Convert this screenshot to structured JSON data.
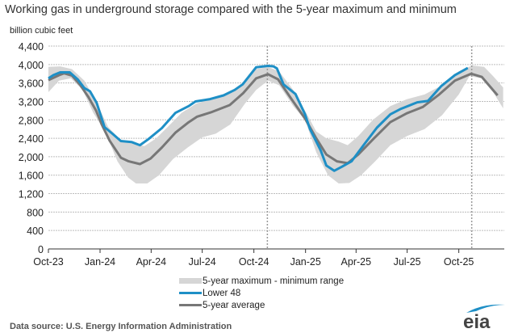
{
  "chart_data": {
    "type": "line",
    "title": "Working gas in underground  storage compared with the 5-year maximum and minimum",
    "ylabel": "billion cubic feet",
    "xlabel": "",
    "ylim": [
      0,
      4400
    ],
    "yticks": [
      0,
      400,
      800,
      1200,
      1600,
      2000,
      2400,
      2800,
      3200,
      3600,
      4000,
      4400
    ],
    "ytick_labels": [
      "0",
      "400",
      "800",
      "1,200",
      "1,600",
      "2,000",
      "2,400",
      "2,800",
      "3,200",
      "3,600",
      "4,000",
      "4,400"
    ],
    "xlim": [
      "2023-10-01",
      "2025-12-21"
    ],
    "xticks": [
      {
        "date": "2023-10-01",
        "label": "Oct-23"
      },
      {
        "date": "2024-01-01",
        "label": "Jan-24"
      },
      {
        "date": "2024-04-01",
        "label": "Apr-24"
      },
      {
        "date": "2024-07-01",
        "label": "Jul-24"
      },
      {
        "date": "2024-10-01",
        "label": "Oct-24"
      },
      {
        "date": "2025-01-01",
        "label": "Jan-25"
      },
      {
        "date": "2025-04-01",
        "label": "Apr-25"
      },
      {
        "date": "2025-07-01",
        "label": "Jul-25"
      },
      {
        "date": "2025-10-01",
        "label": "Oct-25"
      }
    ],
    "grid": true,
    "reference_lines": [
      "2024-10-25",
      "2025-10-24"
    ],
    "legend_position": "bottom",
    "band": {
      "name": "5-year maximum - minimum range",
      "color": "#d6d6d6",
      "max": [
        [
          "2023-10-01",
          3950
        ],
        [
          "2023-10-22",
          3960
        ],
        [
          "2023-11-12",
          3900
        ],
        [
          "2023-12-04",
          3650
        ],
        [
          "2023-12-25",
          3200
        ],
        [
          "2024-01-15",
          2650
        ],
        [
          "2024-02-07",
          2350
        ],
        [
          "2024-03-01",
          2280
        ],
        [
          "2024-03-20",
          2230
        ],
        [
          "2024-04-10",
          2400
        ],
        [
          "2024-05-01",
          2650
        ],
        [
          "2024-05-25",
          2950
        ],
        [
          "2024-06-20",
          3150
        ],
        [
          "2024-07-15",
          3250
        ],
        [
          "2024-08-15",
          3350
        ],
        [
          "2024-09-10",
          3550
        ],
        [
          "2024-10-05",
          3900
        ],
        [
          "2024-10-26",
          3950
        ],
        [
          "2024-11-15",
          3850
        ],
        [
          "2024-12-10",
          3450
        ],
        [
          "2024-12-31",
          3000
        ],
        [
          "2025-01-20",
          2550
        ],
        [
          "2025-02-07",
          2400
        ],
        [
          "2025-03-01",
          2330
        ],
        [
          "2025-03-17",
          2250
        ],
        [
          "2025-04-05",
          2450
        ],
        [
          "2025-05-01",
          2800
        ],
        [
          "2025-06-01",
          3100
        ],
        [
          "2025-07-01",
          3250
        ],
        [
          "2025-08-01",
          3350
        ],
        [
          "2025-09-01",
          3550
        ],
        [
          "2025-10-01",
          3850
        ],
        [
          "2025-10-25",
          3980
        ],
        [
          "2025-11-15",
          3950
        ],
        [
          "2025-12-01",
          3750
        ],
        [
          "2025-12-19",
          3500
        ]
      ],
      "min": [
        [
          "2023-10-01",
          3400
        ],
        [
          "2023-10-20",
          3650
        ],
        [
          "2023-11-10",
          3700
        ],
        [
          "2023-12-01",
          3450
        ],
        [
          "2023-12-20",
          2950
        ],
        [
          "2024-01-10",
          2550
        ],
        [
          "2024-02-01",
          1900
        ],
        [
          "2024-02-20",
          1550
        ],
        [
          "2024-03-05",
          1420
        ],
        [
          "2024-03-25",
          1420
        ],
        [
          "2024-04-15",
          1600
        ],
        [
          "2024-05-10",
          1950
        ],
        [
          "2024-06-05",
          2200
        ],
        [
          "2024-07-01",
          2420
        ],
        [
          "2024-07-25",
          2500
        ],
        [
          "2024-08-20",
          2700
        ],
        [
          "2024-09-15",
          3150
        ],
        [
          "2024-10-05",
          3450
        ],
        [
          "2024-10-26",
          3650
        ],
        [
          "2024-11-15",
          3550
        ],
        [
          "2024-12-10",
          3100
        ],
        [
          "2024-12-31",
          2800
        ],
        [
          "2025-01-20",
          2100
        ],
        [
          "2025-02-10",
          1600
        ],
        [
          "2025-03-01",
          1420
        ],
        [
          "2025-03-20",
          1430
        ],
        [
          "2025-04-10",
          1600
        ],
        [
          "2025-05-05",
          1900
        ],
        [
          "2025-06-01",
          2250
        ],
        [
          "2025-07-01",
          2450
        ],
        [
          "2025-08-01",
          2600
        ],
        [
          "2025-09-01",
          2900
        ],
        [
          "2025-10-01",
          3350
        ],
        [
          "2025-10-20",
          3750
        ],
        [
          "2025-11-10",
          3700
        ],
        [
          "2025-12-01",
          3400
        ],
        [
          "2025-12-19",
          3050
        ]
      ]
    },
    "series": [
      {
        "name": "Lower 48",
        "color": "#1e8fc6",
        "points": [
          [
            "2023-10-01",
            3700
          ],
          [
            "2023-10-10",
            3770
          ],
          [
            "2023-10-22",
            3830
          ],
          [
            "2023-11-08",
            3830
          ],
          [
            "2023-11-22",
            3680
          ],
          [
            "2023-12-04",
            3490
          ],
          [
            "2023-12-14",
            3420
          ],
          [
            "2023-12-26",
            3170
          ],
          [
            "2024-01-09",
            2640
          ],
          [
            "2024-01-23",
            2500
          ],
          [
            "2024-02-07",
            2340
          ],
          [
            "2024-02-26",
            2320
          ],
          [
            "2024-03-12",
            2250
          ],
          [
            "2024-03-27",
            2380
          ],
          [
            "2024-04-20",
            2620
          ],
          [
            "2024-05-14",
            2950
          ],
          [
            "2024-06-07",
            3100
          ],
          [
            "2024-06-19",
            3200
          ],
          [
            "2024-07-15",
            3250
          ],
          [
            "2024-08-08",
            3330
          ],
          [
            "2024-08-28",
            3450
          ],
          [
            "2024-09-11",
            3570
          ],
          [
            "2024-10-05",
            3940
          ],
          [
            "2024-10-26",
            3970
          ],
          [
            "2024-11-05",
            3960
          ],
          [
            "2024-11-11",
            3915
          ],
          [
            "2024-11-23",
            3565
          ],
          [
            "2024-12-14",
            3360
          ],
          [
            "2024-12-31",
            2920
          ],
          [
            "2025-01-09",
            2600
          ],
          [
            "2025-01-28",
            2135
          ],
          [
            "2025-02-07",
            1810
          ],
          [
            "2025-02-21",
            1695
          ],
          [
            "2025-03-07",
            1785
          ],
          [
            "2025-03-24",
            1900
          ],
          [
            "2025-04-14",
            2245
          ],
          [
            "2025-05-08",
            2630
          ],
          [
            "2025-06-01",
            2920
          ],
          [
            "2025-06-20",
            3040
          ],
          [
            "2025-07-19",
            3180
          ],
          [
            "2025-08-07",
            3210
          ],
          [
            "2025-08-31",
            3535
          ],
          [
            "2025-09-24",
            3770
          ],
          [
            "2025-10-17",
            3925
          ]
        ]
      },
      {
        "name": "5-year average",
        "color": "#777777",
        "points": [
          [
            "2023-10-01",
            3660
          ],
          [
            "2023-10-22",
            3780
          ],
          [
            "2023-10-29",
            3810
          ],
          [
            "2023-11-12",
            3760
          ],
          [
            "2023-11-27",
            3550
          ],
          [
            "2023-12-11",
            3300
          ],
          [
            "2023-12-25",
            3000
          ],
          [
            "2024-01-04",
            2700
          ],
          [
            "2024-01-18",
            2350
          ],
          [
            "2024-02-07",
            1980
          ],
          [
            "2024-02-21",
            1900
          ],
          [
            "2024-03-12",
            1840
          ],
          [
            "2024-03-31",
            1960
          ],
          [
            "2024-04-20",
            2200
          ],
          [
            "2024-05-14",
            2520
          ],
          [
            "2024-06-07",
            2750
          ],
          [
            "2024-06-22",
            2870
          ],
          [
            "2024-07-16",
            2960
          ],
          [
            "2024-08-19",
            3120
          ],
          [
            "2024-09-12",
            3380
          ],
          [
            "2024-10-05",
            3700
          ],
          [
            "2024-10-26",
            3790
          ],
          [
            "2024-11-13",
            3680
          ],
          [
            "2024-12-07",
            3250
          ],
          [
            "2024-12-31",
            2830
          ],
          [
            "2025-01-19",
            2420
          ],
          [
            "2025-02-07",
            2050
          ],
          [
            "2025-02-26",
            1900
          ],
          [
            "2025-03-17",
            1860
          ],
          [
            "2025-04-05",
            2050
          ],
          [
            "2025-05-03",
            2400
          ],
          [
            "2025-06-01",
            2750
          ],
          [
            "2025-06-30",
            2940
          ],
          [
            "2025-07-29",
            3080
          ],
          [
            "2025-08-27",
            3350
          ],
          [
            "2025-09-24",
            3650
          ],
          [
            "2025-10-23",
            3800
          ],
          [
            "2025-11-11",
            3730
          ],
          [
            "2025-12-09",
            3330
          ]
        ]
      }
    ]
  },
  "legend": {
    "band": "5-year maximum - minimum range",
    "lower48": "Lower 48",
    "avg": "5-year average"
  },
  "source": "Data source:  U.S. Energy Information Administration",
  "logo_text": "eia"
}
